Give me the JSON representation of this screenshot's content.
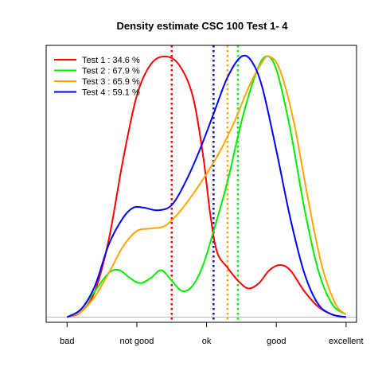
{
  "chart_data": {
    "type": "line",
    "title": "Density estimate CSC 100 Test 1- 4",
    "xlabel": "",
    "ylabel": "",
    "categories": [
      "bad",
      "not good",
      "ok",
      "good",
      "excellent"
    ],
    "xlim": [
      0.7,
      5.15
    ],
    "ylim": [
      -0.02,
      1.0
    ],
    "grid": false,
    "legend_position": "top-left",
    "series": [
      {
        "name": "Test 1 : 34.6 %",
        "color": "#ff0000",
        "mean": 2.5,
        "points": [
          [
            1.0,
            0.0
          ],
          [
            1.2,
            0.02
          ],
          [
            1.4,
            0.1
          ],
          [
            1.6,
            0.3
          ],
          [
            1.8,
            0.6
          ],
          [
            2.0,
            0.85
          ],
          [
            2.2,
            0.97
          ],
          [
            2.4,
            1.0
          ],
          [
            2.6,
            0.97
          ],
          [
            2.8,
            0.85
          ],
          [
            2.95,
            0.62
          ],
          [
            3.05,
            0.4
          ],
          [
            3.15,
            0.25
          ],
          [
            3.3,
            0.19
          ],
          [
            3.45,
            0.14
          ],
          [
            3.6,
            0.11
          ],
          [
            3.75,
            0.13
          ],
          [
            3.9,
            0.18
          ],
          [
            4.05,
            0.2
          ],
          [
            4.2,
            0.18
          ],
          [
            4.4,
            0.1
          ],
          [
            4.6,
            0.04
          ],
          [
            4.8,
            0.01
          ],
          [
            5.0,
            0.0
          ]
        ]
      },
      {
        "name": "Test 2 : 67.9 %",
        "color": "#00ee00",
        "mean": 3.45,
        "points": [
          [
            1.0,
            0.0
          ],
          [
            1.2,
            0.03
          ],
          [
            1.4,
            0.1
          ],
          [
            1.6,
            0.17
          ],
          [
            1.75,
            0.18
          ],
          [
            1.9,
            0.15
          ],
          [
            2.05,
            0.13
          ],
          [
            2.2,
            0.15
          ],
          [
            2.35,
            0.18
          ],
          [
            2.5,
            0.14
          ],
          [
            2.65,
            0.1
          ],
          [
            2.8,
            0.12
          ],
          [
            2.95,
            0.2
          ],
          [
            3.1,
            0.33
          ],
          [
            3.3,
            0.52
          ],
          [
            3.5,
            0.75
          ],
          [
            3.7,
            0.93
          ],
          [
            3.85,
            1.0
          ],
          [
            4.0,
            0.95
          ],
          [
            4.2,
            0.72
          ],
          [
            4.4,
            0.42
          ],
          [
            4.6,
            0.18
          ],
          [
            4.8,
            0.05
          ],
          [
            5.0,
            0.01
          ]
        ]
      },
      {
        "name": "Test 3 : 65.9 %",
        "color": "#ffa500",
        "mean": 3.3,
        "points": [
          [
            1.0,
            0.0
          ],
          [
            1.2,
            0.02
          ],
          [
            1.4,
            0.08
          ],
          [
            1.6,
            0.17
          ],
          [
            1.8,
            0.27
          ],
          [
            2.0,
            0.33
          ],
          [
            2.2,
            0.34
          ],
          [
            2.4,
            0.35
          ],
          [
            2.6,
            0.4
          ],
          [
            2.8,
            0.47
          ],
          [
            3.0,
            0.55
          ],
          [
            3.2,
            0.64
          ],
          [
            3.4,
            0.75
          ],
          [
            3.6,
            0.88
          ],
          [
            3.8,
            0.98
          ],
          [
            3.9,
            1.0
          ],
          [
            4.05,
            0.95
          ],
          [
            4.25,
            0.75
          ],
          [
            4.45,
            0.46
          ],
          [
            4.65,
            0.2
          ],
          [
            4.85,
            0.05
          ],
          [
            5.0,
            0.01
          ]
        ]
      },
      {
        "name": "Test 4 : 59.1 %",
        "color": "#0000ff",
        "mean": 3.1,
        "points": [
          [
            1.0,
            0.0
          ],
          [
            1.2,
            0.03
          ],
          [
            1.4,
            0.12
          ],
          [
            1.6,
            0.28
          ],
          [
            1.8,
            0.38
          ],
          [
            1.95,
            0.42
          ],
          [
            2.1,
            0.42
          ],
          [
            2.3,
            0.41
          ],
          [
            2.5,
            0.43
          ],
          [
            2.7,
            0.52
          ],
          [
            2.9,
            0.64
          ],
          [
            3.1,
            0.78
          ],
          [
            3.3,
            0.92
          ],
          [
            3.5,
            1.0
          ],
          [
            3.65,
            0.98
          ],
          [
            3.8,
            0.88
          ],
          [
            4.0,
            0.64
          ],
          [
            4.2,
            0.38
          ],
          [
            4.4,
            0.17
          ],
          [
            4.6,
            0.05
          ],
          [
            4.8,
            0.01
          ],
          [
            5.0,
            0.0
          ]
        ]
      }
    ]
  }
}
